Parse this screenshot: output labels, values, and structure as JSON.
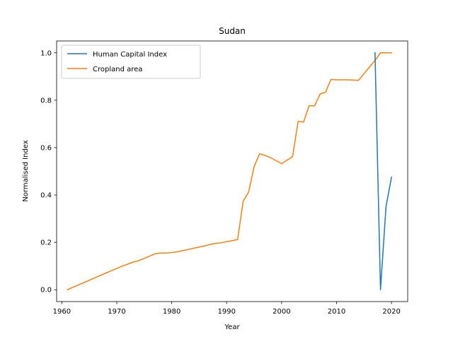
{
  "chart_data": {
    "type": "line",
    "title": "Sudan",
    "xlabel": "Year",
    "ylabel": "Normalised Index",
    "xlim": [
      1959.05,
      2022.95
    ],
    "ylim": [
      -0.05,
      1.05
    ],
    "xticks": [
      1960,
      1970,
      1980,
      1990,
      2000,
      2010,
      2020
    ],
    "yticks": [
      0.0,
      0.2,
      0.4,
      0.6,
      0.8,
      1.0
    ],
    "xtick_labels": [
      "1960",
      "1970",
      "1980",
      "1990",
      "2000",
      "2010",
      "2020"
    ],
    "ytick_labels": [
      "0.0",
      "0.2",
      "0.4",
      "0.6",
      "0.8",
      "1.0"
    ],
    "grid": false,
    "legend_position": "top-left",
    "series": [
      {
        "name": "Human Capital Index",
        "color": "#1f77b4",
        "x": [
          2017,
          2018,
          2019,
          2020
        ],
        "y": [
          1.0,
          0.0,
          0.35,
          0.475
        ]
      },
      {
        "name": "Cropland area",
        "color": "#ff7f0e",
        "x": [
          1961,
          1962,
          1963,
          1964,
          1965,
          1966,
          1967,
          1968,
          1969,
          1970,
          1971,
          1972,
          1973,
          1974,
          1975,
          1976,
          1977,
          1978,
          1979,
          1980,
          1981,
          1982,
          1983,
          1984,
          1985,
          1986,
          1987,
          1988,
          1989,
          1990,
          1991,
          1992,
          1993,
          1994,
          1995,
          1996,
          1997,
          1998,
          1999,
          2000,
          2001,
          2002,
          2003,
          2004,
          2005,
          2006,
          2007,
          2008,
          2009,
          2010,
          2011,
          2012,
          2013,
          2014,
          2015,
          2016,
          2017,
          2018,
          2019,
          2020
        ],
        "y": [
          0.0,
          0.01,
          0.02,
          0.03,
          0.04,
          0.05,
          0.06,
          0.07,
          0.08,
          0.09,
          0.1,
          0.108,
          0.117,
          0.123,
          0.132,
          0.142,
          0.152,
          0.155,
          0.155,
          0.157,
          0.16,
          0.165,
          0.17,
          0.175,
          0.18,
          0.185,
          0.191,
          0.196,
          0.198,
          0.203,
          0.207,
          0.212,
          0.374,
          0.412,
          0.52,
          0.574,
          0.567,
          0.557,
          0.545,
          0.532,
          0.547,
          0.562,
          0.71,
          0.708,
          0.776,
          0.776,
          0.826,
          0.834,
          0.888,
          0.886,
          0.886,
          0.886,
          0.885,
          0.884,
          0.912,
          0.94,
          0.968,
          1.0,
          1.0,
          1.0
        ]
      }
    ]
  }
}
